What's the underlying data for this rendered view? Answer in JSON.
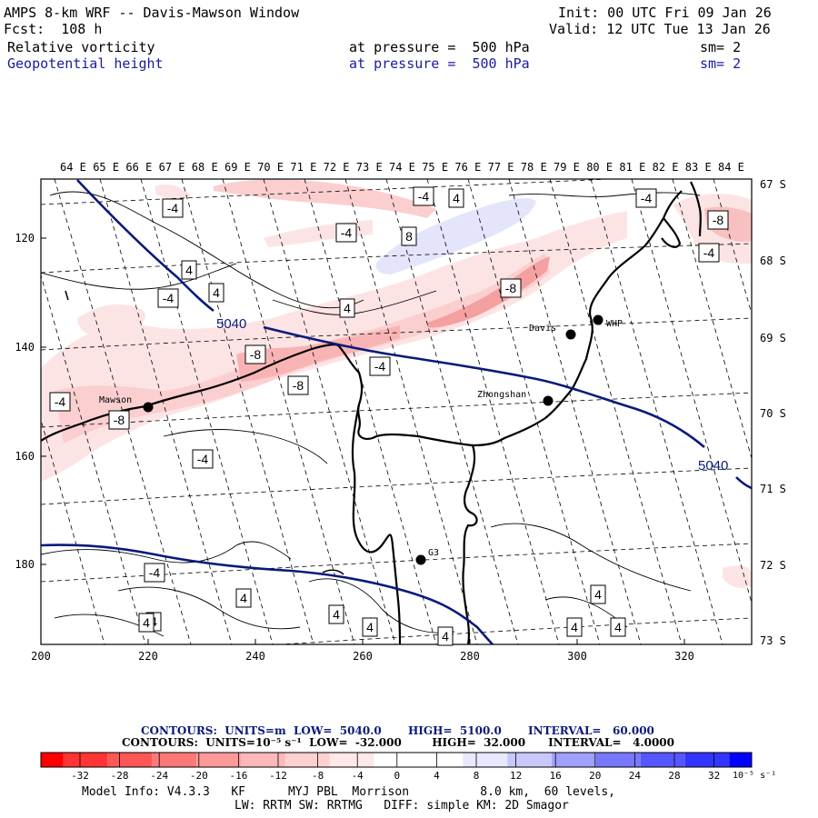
{
  "header": {
    "title": "AMPS 8-km WRF -- Davis-Mawson Window",
    "init": "Init: 00 UTC Fri 09 Jan 26",
    "fcst": "Fcst:  108 h",
    "valid": "Valid: 12 UTC Tue 13 Jan 26",
    "field1": "Relative vorticity",
    "field1_level": "at pressure =  500 hPa",
    "field1_sm": "sm= 2",
    "field2": "Geopotential height",
    "field2_level": "at pressure =  500 hPa",
    "field2_sm": "sm= 2"
  },
  "map": {
    "lon_labels": [
      "64 E",
      "65 E",
      "66 E",
      "67 E",
      "68 E",
      "69 E",
      "70 E",
      "71 E",
      "72 E",
      "73 E",
      "74 E",
      "75 E",
      "76 E",
      "77 E",
      "78 E",
      "79 E",
      "80 E",
      "81 E",
      "82 E",
      "83 E",
      "84 E"
    ],
    "lat_labels": [
      "67 S",
      "68 S",
      "69 S",
      "70 S",
      "71 S",
      "72 S",
      "73 S"
    ],
    "x_ticks": [
      "200",
      "220",
      "240",
      "260",
      "280",
      "300",
      "320"
    ],
    "y_ticks": [
      "120",
      "140",
      "160",
      "180"
    ],
    "stations": [
      {
        "name": "Mawson"
      },
      {
        "name": "Davis"
      },
      {
        "name": "WHP"
      },
      {
        "name": "Zhongshan"
      },
      {
        "name": "G3"
      }
    ],
    "height_labels": [
      "5040",
      "5040"
    ],
    "vort_labels": [
      "-4",
      "4",
      "-4",
      "4",
      "-4",
      "8",
      "-4",
      "-8",
      "4",
      "-4",
      "4",
      "-4",
      "4",
      "-8",
      "-4",
      "-8",
      "-8",
      "-4",
      "-4",
      "-8",
      "-4",
      "4",
      "4",
      "4",
      "4",
      "4",
      "4",
      "4",
      "4"
    ]
  },
  "footer": {
    "contours1": "CONTOURS:  UNITS=m  LOW=  5040.0       HIGH=  5100.0       INTERVAL=   60.000",
    "contours2": "CONTOURS:  UNITS=10⁻⁵ s⁻¹  LOW=  -32.000        HIGH=  32.000      INTERVAL=   4.0000",
    "scale_labels": [
      "-32",
      "-28",
      "-24",
      "-20",
      "-16",
      "-12",
      "-8",
      "-4",
      "0",
      "4",
      "8",
      "12",
      "16",
      "20",
      "24",
      "28",
      "32"
    ],
    "scale_unit": "10⁻⁵ s⁻¹",
    "scale_colors": [
      "#ff0000",
      "#ff3434",
      "#ff5656",
      "#ff7878",
      "#ff9a9a",
      "#ffb8b8",
      "#ffd0d0",
      "#ffe8e8",
      "#ffffff",
      "#ffffff",
      "#e8e8ff",
      "#c8c8ff",
      "#a0a0ff",
      "#7878ff",
      "#5656ff",
      "#3434ff",
      "#0000ff"
    ],
    "model_info": "Model Info: V4.3.3   KF      MYJ PBL  Morrison          8.0 km,  60 levels,",
    "physics_info": "LW: RRTM SW: RRTMG   DIFF: simple KM: 2D Smagor"
  }
}
